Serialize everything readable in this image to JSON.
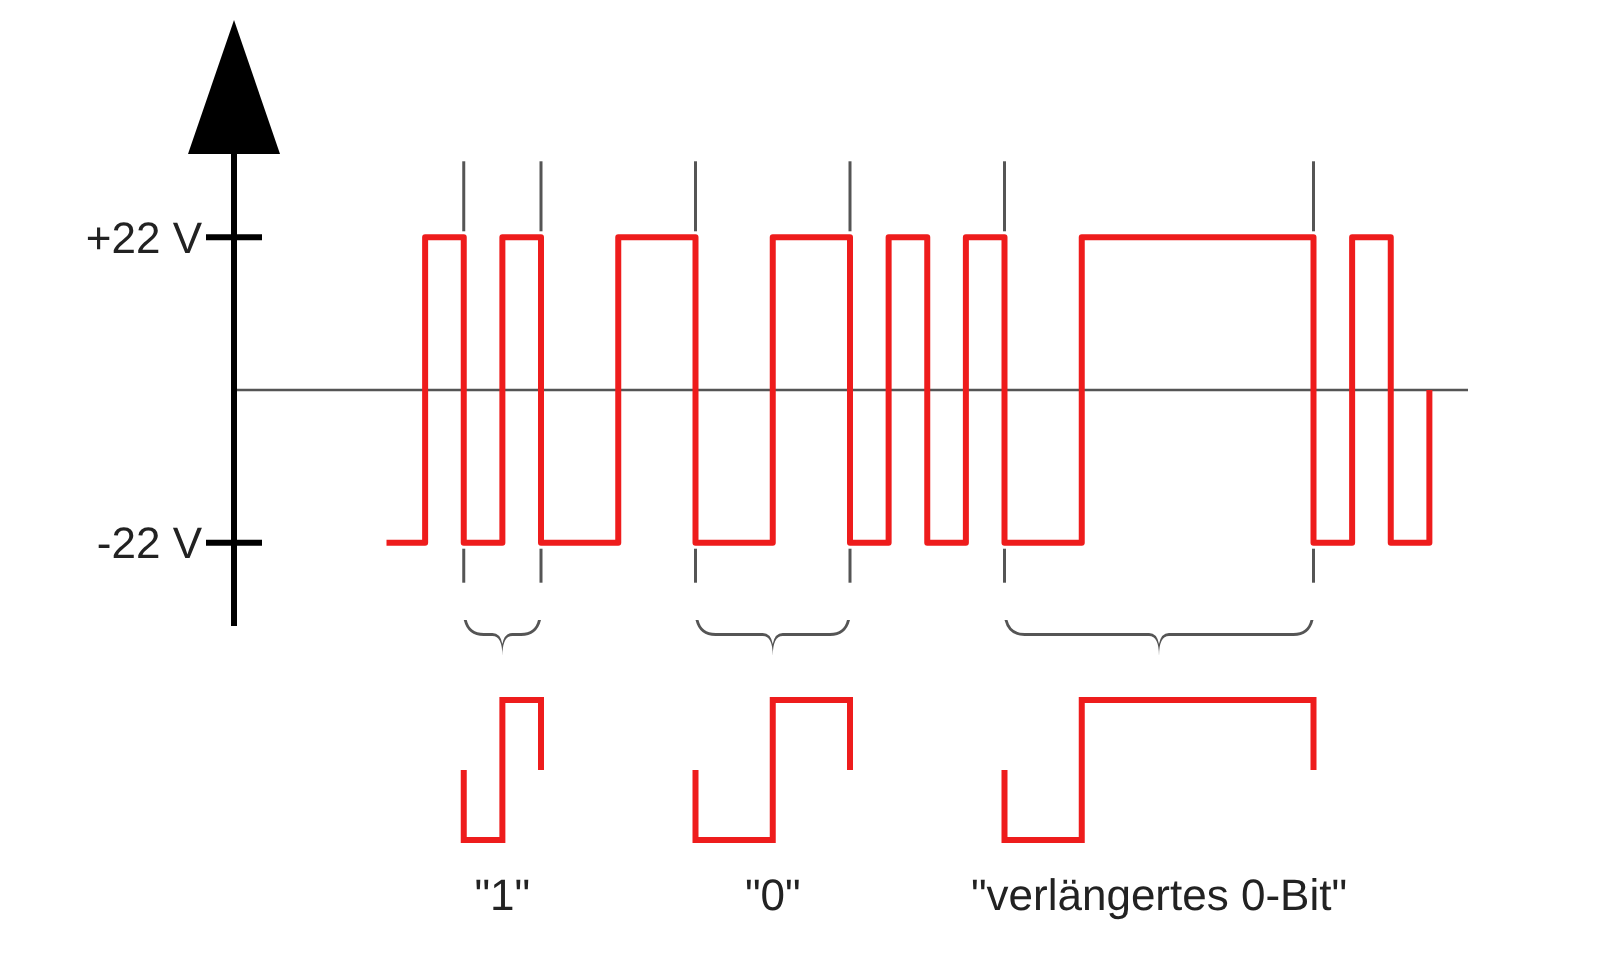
{
  "chart_data": {
    "type": "step",
    "categories": [
      null,
      null,
      null,
      null,
      null,
      null,
      null,
      null,
      null,
      null,
      null,
      null,
      null,
      null,
      null,
      null,
      null,
      null,
      null,
      null,
      null,
      null,
      null,
      null,
      null,
      null,
      null,
      null
    ],
    "series": [
      {
        "color": "#ee1c1c",
        "values": [
          -22,
          22,
          -22,
          22,
          -22,
          -22,
          22,
          22,
          -22,
          -22,
          22,
          22,
          -22,
          22,
          -22,
          22,
          -22,
          -22,
          22,
          22,
          22,
          22,
          22,
          22,
          -22,
          22,
          -22,
          0
        ]
      }
    ],
    "ylim": [
      -34,
      34
    ],
    "yticks": [
      {
        "value": 22,
        "label": "+22 V"
      },
      {
        "value": -22,
        "label": "-22 V"
      }
    ],
    "tick_labels": "y",
    "grid": false,
    "marker": "none",
    "line_style": "solid",
    "annotations": [
      "\"1\"",
      "\"0\"",
      "\"verlängertes 0-Bit\""
    ]
  }
}
